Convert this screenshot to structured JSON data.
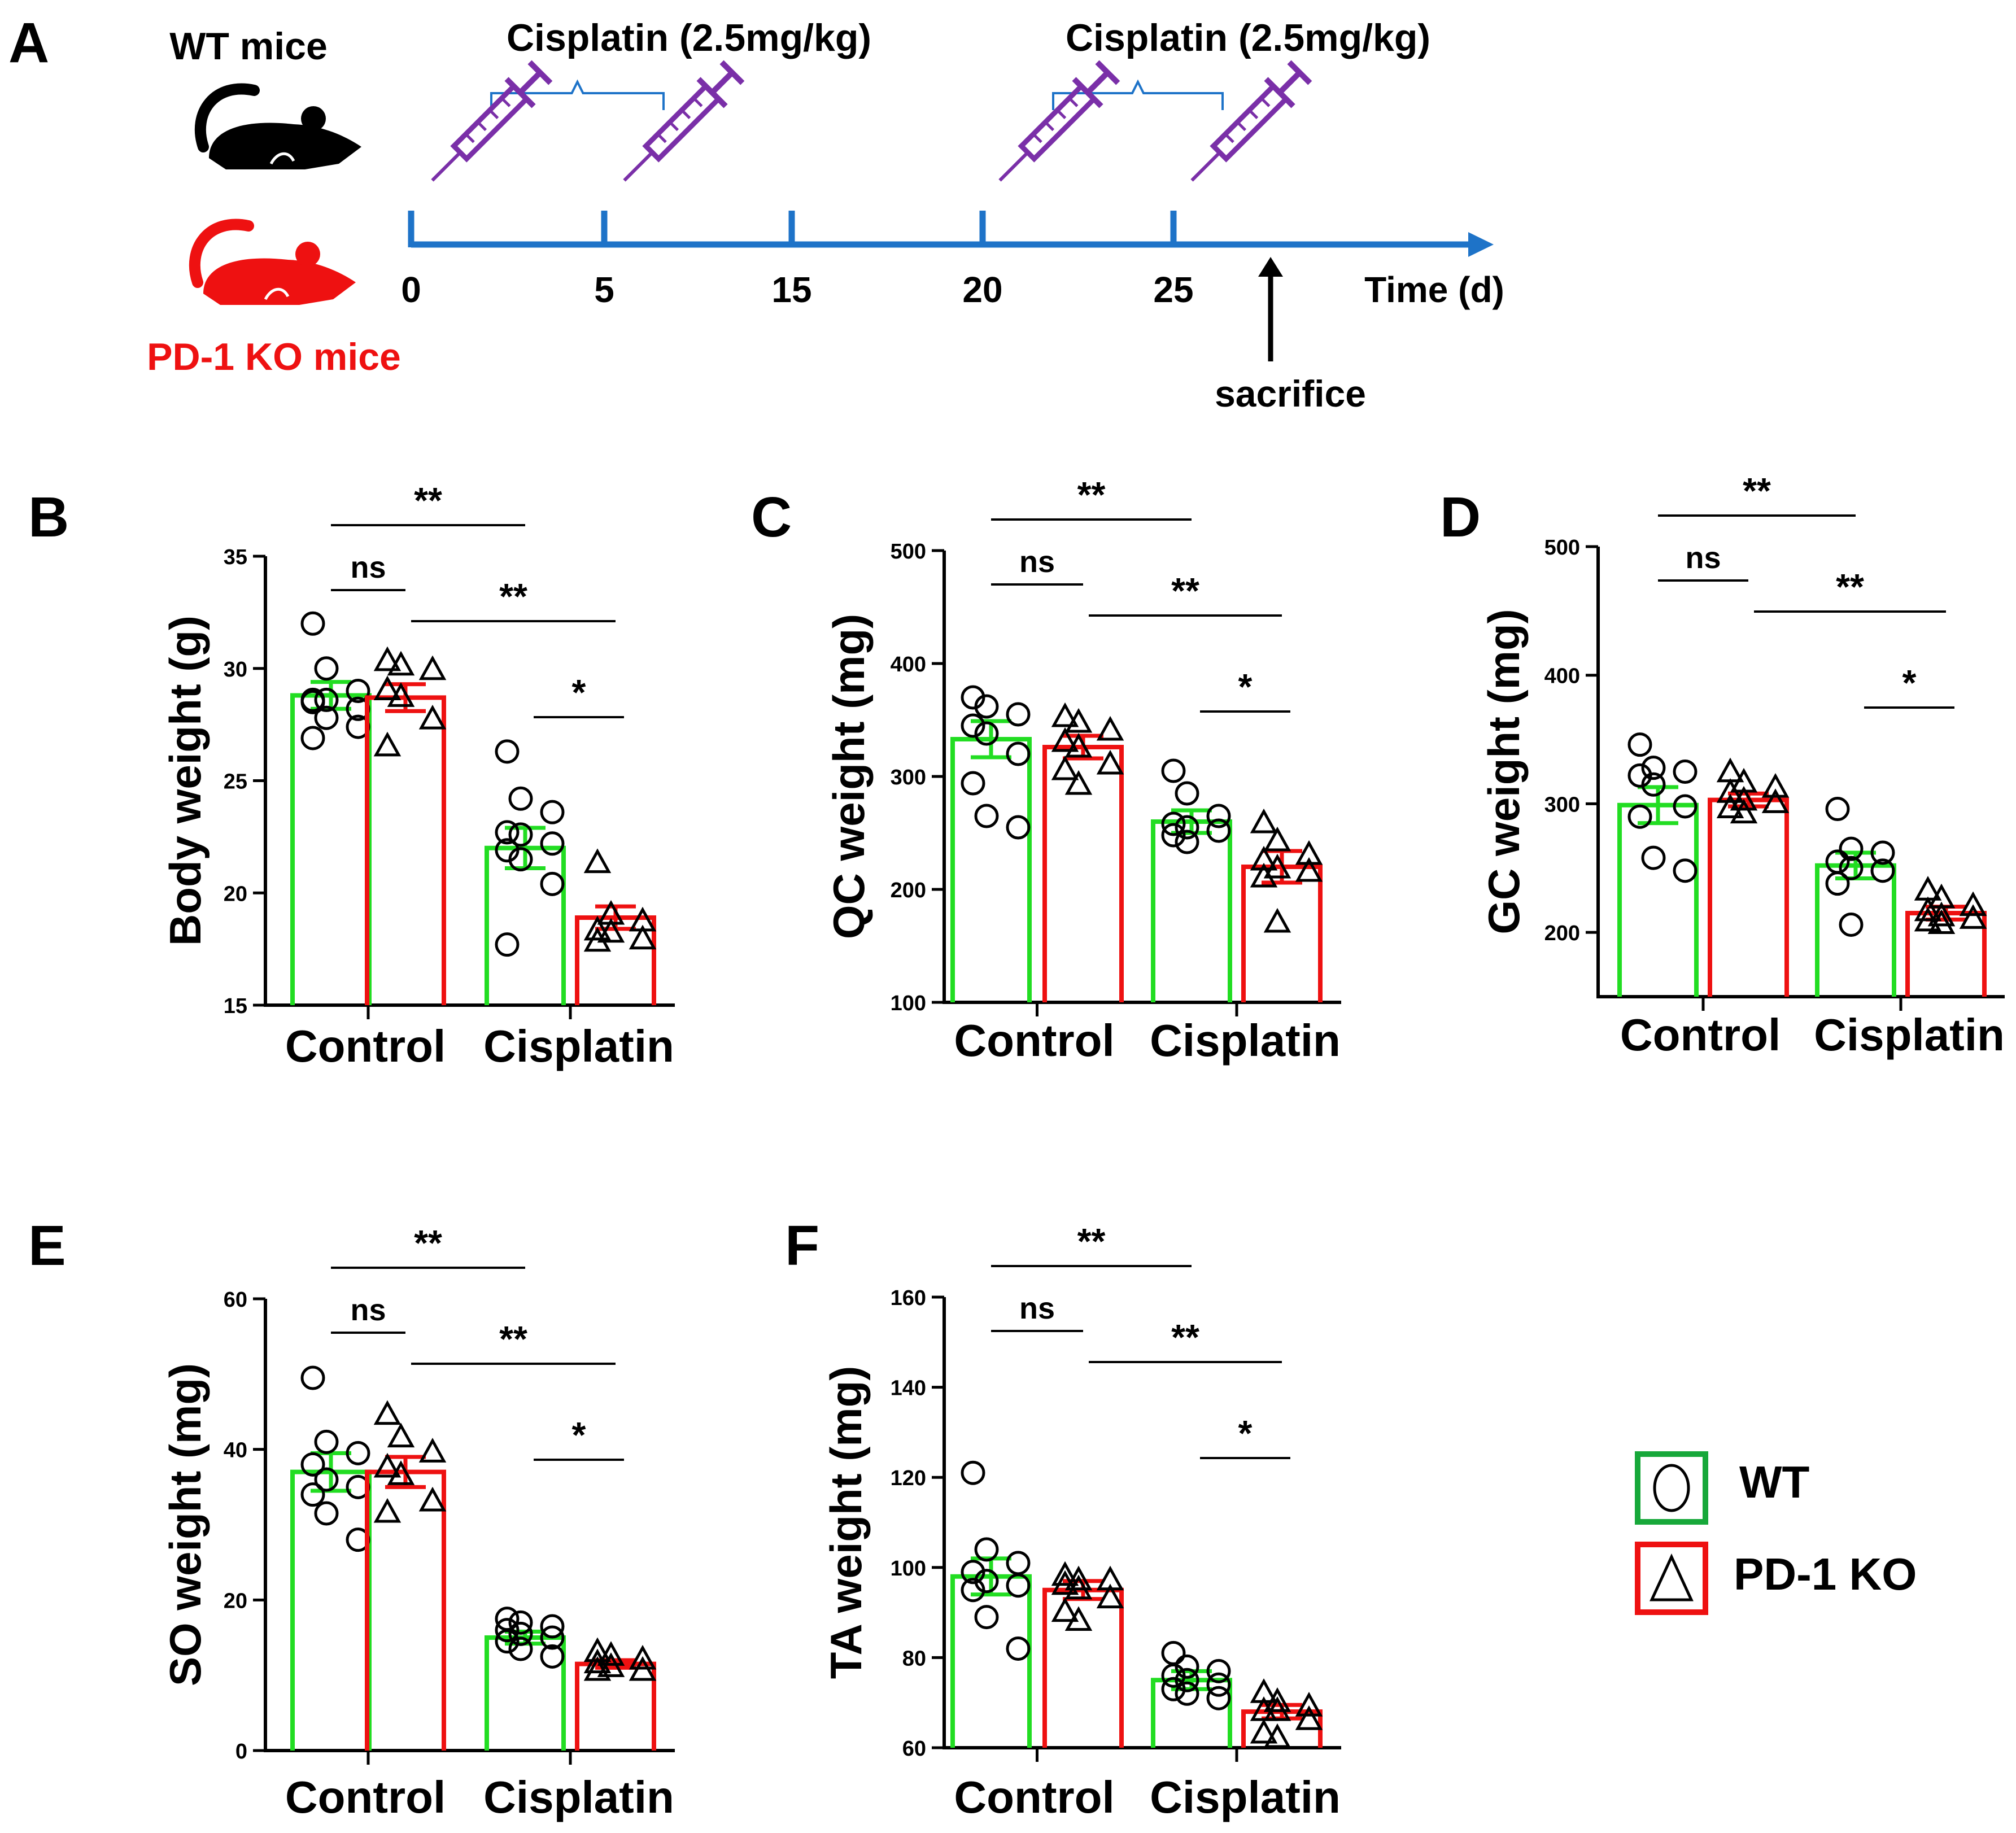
{
  "colors": {
    "wt": "#22dd22",
    "ko": "#ee1111",
    "timeline": "#1e73c8",
    "syringe": "#7a2fa8",
    "black": "#000000",
    "legend_wt": "#17a83a"
  },
  "panel_a": {
    "letter": "A",
    "wt_label": "WT mice",
    "ko_label": "PD-1 KO mice",
    "bracket_labels": [
      "Cisplatin (2.5mg/kg)",
      "Cisplatin (2.5mg/kg)"
    ],
    "ticks": [
      0,
      5,
      15,
      20,
      25
    ],
    "syringe_days": [
      0,
      5,
      20,
      25
    ],
    "time_label": "Time (d)",
    "sacrifice_label": "sacrifice"
  },
  "legend": [
    {
      "label": "WT",
      "icon": "circle-icon"
    },
    {
      "label": "PD-1 KO",
      "icon": "triangle-icon"
    }
  ],
  "chart_data": [
    {
      "panel": "B",
      "type": "bar",
      "ylabel": "Body weight (g)",
      "categories": [
        "Control",
        "Cisplatin"
      ],
      "ylim": [
        15,
        35
      ],
      "yticks": [
        15,
        20,
        25,
        30,
        35
      ],
      "series": [
        {
          "name": "WT",
          "values": [
            28.8,
            22.0
          ],
          "sem": [
            0.6,
            0.9
          ],
          "points": [
            [
              32.0,
              30.0,
              29.0,
              28.6,
              28.6,
              28.2,
              28.5,
              27.8,
              27.4,
              26.9
            ],
            [
              26.3,
              24.2,
              23.6,
              22.7,
              22.6,
              22.2,
              21.9,
              21.5,
              20.4,
              17.7
            ]
          ]
        },
        {
          "name": "PD-1 KO",
          "values": [
            28.7,
            18.9
          ],
          "sem": [
            0.6,
            0.5
          ],
          "points": [
            [
              30.3,
              30.1,
              29.9,
              29.0,
              28.7,
              27.7,
              26.5
            ],
            [
              21.3,
              19.0,
              18.7,
              18.3,
              18.2,
              17.9,
              17.8
            ]
          ]
        }
      ],
      "annotations": [
        "**",
        "ns",
        "**",
        "*"
      ]
    },
    {
      "panel": "C",
      "type": "bar",
      "ylabel": "QC weight (mg)",
      "categories": [
        "Control",
        "Cisplatin"
      ],
      "ylim": [
        100,
        500
      ],
      "yticks": [
        100,
        200,
        300,
        400,
        500
      ],
      "series": [
        {
          "name": "WT",
          "values": [
            333,
            260
          ],
          "sem": [
            16,
            10
          ],
          "points": [
            [
              370,
              362,
              355,
              345,
              338,
              320,
              294,
              265,
              255
            ],
            [
              305,
              285,
              265,
              258,
              255,
              252,
              248,
              242
            ]
          ]
        },
        {
          "name": "PD-1 KO",
          "values": [
            326,
            220
          ],
          "sem": [
            10,
            14
          ],
          "points": [
            [
              352,
              347,
              340,
              330,
              325,
              310,
              305,
              292
            ],
            [
              258,
              242,
              230,
              225,
              218,
              215,
              210,
              170
            ]
          ]
        }
      ],
      "annotations": [
        "**",
        "ns",
        "**",
        "*"
      ]
    },
    {
      "panel": "D",
      "type": "bar",
      "ylabel": "GC weight (mg)",
      "categories": [
        "Control",
        "Cisplatin"
      ],
      "ylim": [
        150,
        500
      ],
      "yticks": [
        200,
        300,
        400,
        500
      ],
      "series": [
        {
          "name": "WT",
          "values": [
            299,
            252
          ],
          "sem": [
            14,
            10
          ],
          "points": [
            [
              346,
              328,
              325,
              322,
              315,
              298,
              290,
              258,
              248
            ],
            [
              296,
              265,
              262,
              255,
              250,
              248,
              238,
              206
            ]
          ]
        },
        {
          "name": "PD-1 KO",
          "values": [
            303,
            215
          ],
          "sem": [
            5,
            5
          ],
          "points": [
            [
              324,
              316,
              312,
              308,
              302,
              300,
              296,
              292
            ],
            [
              232,
              226,
              220,
              216,
              212,
              210,
              208,
              206
            ]
          ]
        }
      ],
      "annotations": [
        "**",
        "ns",
        "**",
        "*"
      ]
    },
    {
      "panel": "E",
      "type": "bar",
      "ylabel": "SO weight (mg)",
      "categories": [
        "Control",
        "Cisplatin"
      ],
      "ylim": [
        0,
        60
      ],
      "yticks": [
        0,
        20,
        40,
        60
      ],
      "series": [
        {
          "name": "WT",
          "values": [
            37,
            15
          ],
          "sem": [
            2.5,
            0.8
          ],
          "points": [
            [
              49.5,
              41,
              39.5,
              38,
              36,
              35,
              34,
              31.5,
              28
            ],
            [
              17.5,
              17,
              16.5,
              16,
              15.5,
              15,
              14.5,
              13.5,
              12.5
            ]
          ]
        },
        {
          "name": "PD-1 KO",
          "values": [
            37,
            11.5
          ],
          "sem": [
            2,
            0.5
          ],
          "points": [
            [
              44.5,
              41.5,
              39.5,
              37.5,
              36.5,
              33,
              31.5
            ],
            [
              13,
              12.5,
              12,
              11.5,
              11,
              10.5,
              10.5
            ]
          ]
        }
      ],
      "annotations": [
        "**",
        "ns",
        "**",
        "*"
      ]
    },
    {
      "panel": "F",
      "type": "bar",
      "ylabel": "TA weight (mg)",
      "categories": [
        "Control",
        "Cisplatin"
      ],
      "ylim": [
        60,
        160
      ],
      "yticks": [
        60,
        80,
        100,
        120,
        140,
        160
      ],
      "series": [
        {
          "name": "WT",
          "values": [
            98,
            75
          ],
          "sem": [
            4,
            2
          ],
          "points": [
            [
              121,
              104,
              101,
              99,
              97,
              96,
              95,
              89,
              82
            ],
            [
              81,
              78,
              77,
              76,
              75,
              74,
              73,
              72,
              71
            ]
          ]
        },
        {
          "name": "PD-1 KO",
          "values": [
            95,
            68
          ],
          "sem": [
            2,
            1.5
          ],
          "points": [
            [
              98,
              97,
              97,
              96,
              95,
              93,
              90,
              88
            ],
            [
              72,
              70,
              69,
              68,
              68,
              66,
              63,
              62
            ]
          ]
        }
      ],
      "annotations": [
        "**",
        "ns",
        "**",
        "*"
      ]
    }
  ]
}
